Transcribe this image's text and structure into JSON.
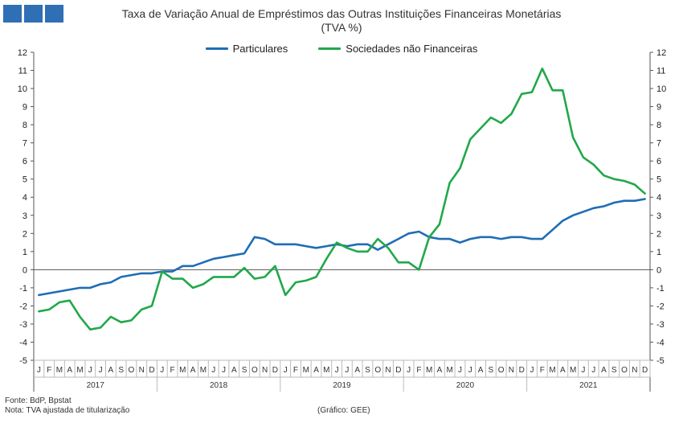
{
  "header": {
    "title_line1": "Taxa de Variação Anual de Empréstimos das Outras Instituições Financeiras Monetárias",
    "title_line2": "(TVA %)",
    "logo_color": "#2f6fb6"
  },
  "footer": {
    "source": "Fonte: BdP, Bpstat",
    "note": "Nota: TVA ajustada de titularização",
    "credit": "(Gráfico: GEE)"
  },
  "chart_data": {
    "type": "line",
    "title": "Taxa de Variação Anual de Empréstimos das Outras Instituições Financeiras Monetárias",
    "subtitle": "(TVA %)",
    "ylim": [
      -5,
      12
    ],
    "yticks": [
      -5,
      -4,
      -3,
      -2,
      -1,
      0,
      1,
      2,
      3,
      4,
      5,
      6,
      7,
      8,
      9,
      10,
      11,
      12
    ],
    "y_axes": "left and right",
    "legend_position": "top-center",
    "grid": false,
    "month_labels": [
      "J",
      "F",
      "M",
      "A",
      "M",
      "J",
      "J",
      "A",
      "S",
      "O",
      "N",
      "D"
    ],
    "years": [
      "2017",
      "2018",
      "2019",
      "2020",
      "2021"
    ],
    "series": [
      {
        "name": "Particulares",
        "color": "#1f6db5",
        "values": [
          -1.4,
          -1.3,
          -1.2,
          -1.1,
          -1.0,
          -1.0,
          -0.8,
          -0.7,
          -0.4,
          -0.3,
          -0.2,
          -0.2,
          -0.1,
          -0.1,
          0.2,
          0.2,
          0.4,
          0.6,
          0.7,
          0.8,
          0.9,
          1.8,
          1.7,
          1.4,
          1.4,
          1.4,
          1.3,
          1.2,
          1.3,
          1.4,
          1.3,
          1.4,
          1.4,
          1.1,
          1.4,
          1.7,
          2.0,
          2.1,
          1.8,
          1.7,
          1.7,
          1.5,
          1.7,
          1.8,
          1.8,
          1.7,
          1.8,
          1.8,
          1.7,
          1.7,
          2.2,
          2.7,
          3.0,
          3.2,
          3.4,
          3.5,
          3.7,
          3.8,
          3.8,
          3.9
        ]
      },
      {
        "name": "Sociedades não Financeiras",
        "color": "#21a84a",
        "values": [
          -2.3,
          -2.2,
          -1.8,
          -1.7,
          -2.6,
          -3.3,
          -3.2,
          -2.6,
          -2.9,
          -2.8,
          -2.2,
          -2.0,
          -0.1,
          -0.5,
          -0.5,
          -1.0,
          -0.8,
          -0.4,
          -0.4,
          -0.4,
          0.1,
          -0.5,
          -0.4,
          0.2,
          -1.4,
          -0.7,
          -0.6,
          -0.4,
          0.6,
          1.5,
          1.2,
          1.0,
          1.0,
          1.7,
          1.2,
          0.4,
          0.4,
          0.0,
          1.8,
          2.5,
          4.8,
          5.6,
          7.2,
          7.8,
          8.4,
          8.1,
          8.6,
          9.7,
          9.8,
          11.1,
          9.9,
          9.9,
          7.3,
          6.2,
          5.8,
          5.2,
          5.0,
          4.9,
          4.7,
          4.2
        ]
      }
    ]
  }
}
